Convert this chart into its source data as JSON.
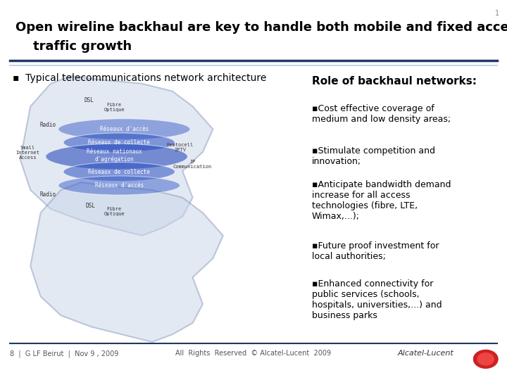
{
  "title_line1": "Open wireline backhaul are key to handle both mobile and fixed access",
  "title_line2": "    traffic growth",
  "bullet_header": "Typical telecommunications network architecture",
  "role_header": "Role of backhaul networks:",
  "bullets": [
    "Cost effective coverage of\nmedium and low density areas;",
    "Stimulate competition and\ninnovation;",
    "Anticipate bandwidth demand\nincrease for all access\ntechnologies (fibre, LTE,\nWimax,...);",
    "Future proof investment for\nlocal authorities;",
    "Enhanced connectivity for\npublic services (schools,\nhospitals, universities,...) and\nbusiness parks"
  ],
  "footer_left": "8  |  G LF Beirut  |  Nov 9 , 2009",
  "footer_center": "All  Rights  Reserved  © Alcatel-Lucent  2009",
  "footer_right": "Alcatel-Lucent",
  "bg_color": "#ffffff",
  "title_color": "#000000",
  "header_line_color1": "#1f3864",
  "header_line_color2": "#b8cce4",
  "title_fontsize": 13,
  "subtitle_fontsize": 10,
  "role_header_fontsize": 11,
  "bullet_fontsize": 9,
  "footer_fontsize": 7
}
